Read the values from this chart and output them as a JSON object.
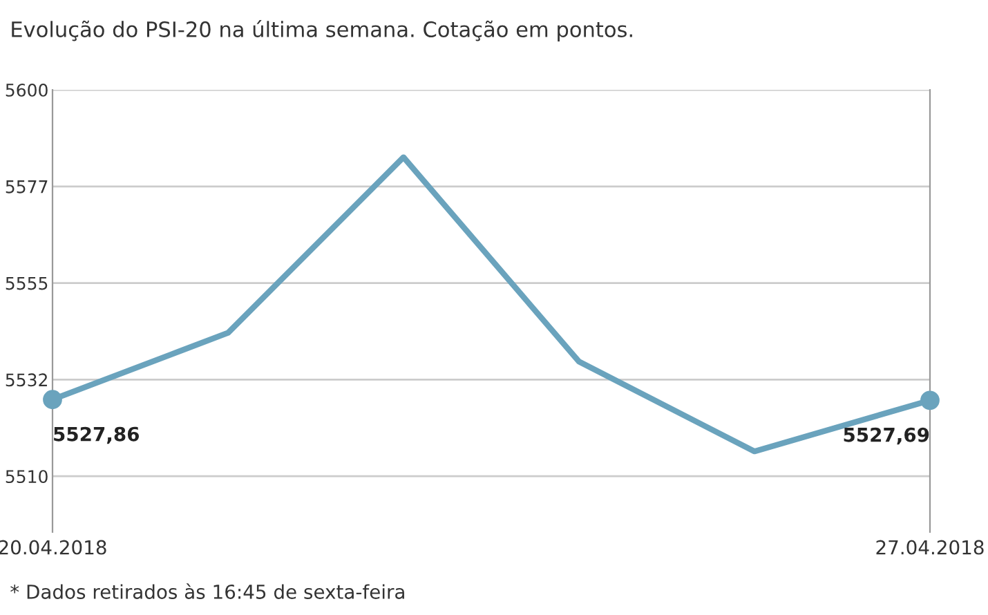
{
  "chart_data": {
    "type": "line",
    "title": "Evolução do PSI-20 na última semana. Cotação em pontos.",
    "categories": [
      "20.04.2018",
      null,
      null,
      null,
      null,
      "27.04.2018"
    ],
    "series": [
      {
        "color": "#6aa3bd",
        "values": [
          5527.86,
          5543.4,
          5584.3,
          5536.7,
          5515.8,
          5527.69
        ],
        "value_labels": [
          "5527,86",
          null,
          null,
          null,
          null,
          "5527,69"
        ]
      }
    ],
    "ylim": [
      5497,
      5600
    ],
    "yticks": [
      {
        "value": 5510,
        "label": "5510"
      },
      {
        "value": 5532.5,
        "label": "5532"
      },
      {
        "value": 5555,
        "label": "5555"
      },
      {
        "value": 5577.5,
        "label": "5577"
      },
      {
        "value": 5600,
        "label": "5600"
      }
    ],
    "grid": "y",
    "annotations": [
      "* Dados retirados às 16:45 de sexta-feira"
    ]
  }
}
